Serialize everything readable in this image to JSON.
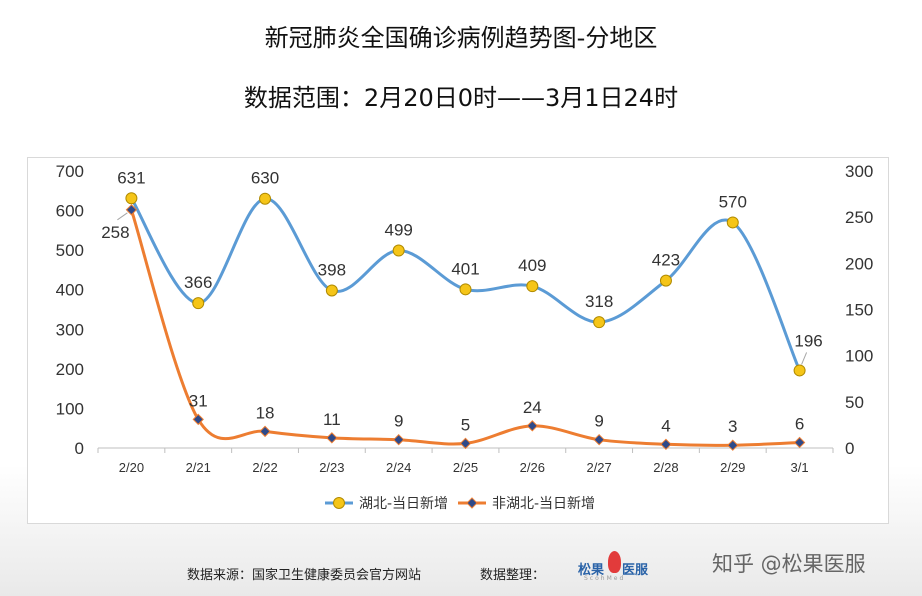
{
  "header": {
    "title": "新冠肺炎全国确诊病例趋势图-分地区",
    "subtitle": "数据范围：2月20日0时——3月1日24时"
  },
  "footer": {
    "source": "数据来源：国家卫生健康委员会官方网站",
    "organizer": "数据整理：",
    "logo_text_left": "松果",
    "logo_text_right": "医服",
    "logo_sub": "ScohMed",
    "watermark": "知乎 @松果医服"
  },
  "chart_data": {
    "type": "line",
    "title": "",
    "xlabel": "",
    "ylabel": "",
    "categories": [
      "2/20",
      "2/21",
      "2/22",
      "2/23",
      "2/24",
      "2/25",
      "2/26",
      "2/27",
      "2/28",
      "2/29",
      "3/1"
    ],
    "series": [
      {
        "name": "湖北-当日新增",
        "axis": "left",
        "values": [
          631,
          366,
          630,
          398,
          499,
          401,
          409,
          318,
          423,
          570,
          196
        ],
        "labels": [
          "631",
          "366",
          "630",
          "398",
          "499",
          "401",
          "409",
          "318",
          "423",
          "570",
          "196"
        ],
        "color": "#5b9bd5",
        "marker": "circle",
        "marker_color": "#f5c518"
      },
      {
        "name": "非湖北-当日新增",
        "axis": "right",
        "values": [
          258,
          31,
          18,
          11,
          9,
          5,
          24,
          9,
          4,
          3,
          6
        ],
        "labels": [
          "258",
          "31",
          "18",
          "11",
          "9",
          "5",
          "24",
          "9",
          "4",
          "3",
          "6"
        ],
        "color": "#ed7d31",
        "marker": "diamond",
        "marker_color": "#2e4a8a"
      }
    ],
    "y_left": {
      "lim": [
        0,
        700
      ],
      "ticks": [
        "0",
        "100",
        "200",
        "300",
        "400",
        "500",
        "600",
        "700"
      ]
    },
    "y_right": {
      "lim": [
        0,
        300
      ],
      "ticks": [
        "0",
        "50",
        "100",
        "150",
        "200",
        "250",
        "300"
      ]
    },
    "grid": false,
    "smooth": true,
    "legend": "bottom"
  }
}
